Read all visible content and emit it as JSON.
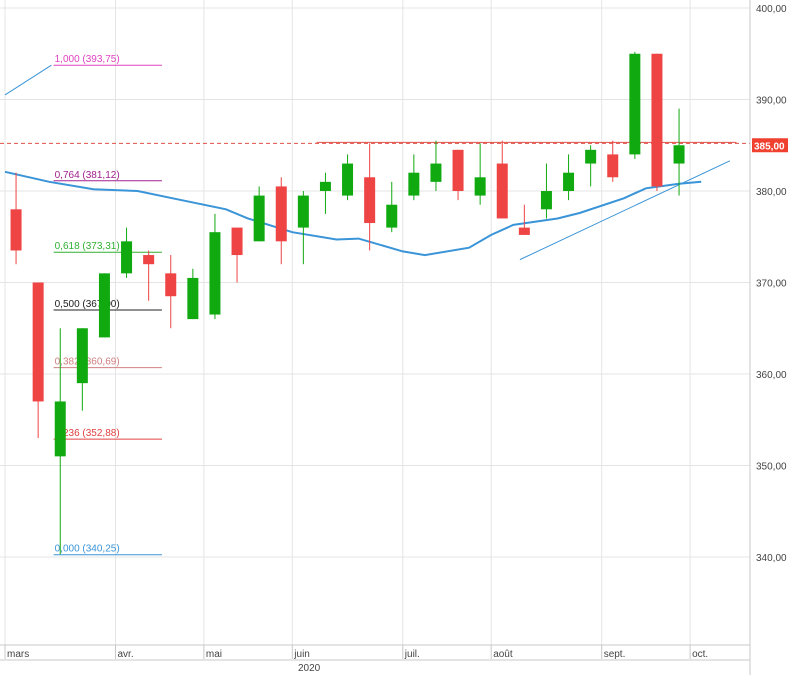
{
  "chart_data": {
    "type": "candlestick",
    "ylim": [
      333,
      400
    ],
    "yticks": [
      "400,00",
      "390,00",
      "380,00",
      "370,00",
      "360,00",
      "350,00",
      "340,00"
    ],
    "ytick_values": [
      400,
      390,
      380,
      370,
      360,
      350,
      340
    ],
    "xticks": [
      {
        "label": "mars",
        "index": -0.5
      },
      {
        "label": "avr.",
        "index": 4.5
      },
      {
        "label": "mai",
        "index": 8.5
      },
      {
        "label": "juin",
        "index": 12.5
      },
      {
        "label": "juil.",
        "index": 17.5
      },
      {
        "label": "août",
        "index": 21.5
      },
      {
        "label": "sept.",
        "index": 26.5
      },
      {
        "label": "oct.",
        "index": 30.5
      }
    ],
    "year_label": "2020",
    "current_price": {
      "label": "385,00",
      "value": 385,
      "color": "#f04030"
    },
    "candles": [
      {
        "o": 378,
        "h": 382,
        "l": 372,
        "c": 373.5
      },
      {
        "o": 370,
        "h": 370,
        "l": 353,
        "c": 357
      },
      {
        "o": 351,
        "h": 365,
        "l": 340.3,
        "c": 357
      },
      {
        "o": 359,
        "h": 365,
        "l": 356,
        "c": 365
      },
      {
        "o": 364,
        "h": 371,
        "l": 364,
        "c": 371
      },
      {
        "o": 371,
        "h": 376,
        "l": 370.5,
        "c": 374.5
      },
      {
        "o": 373,
        "h": 373.5,
        "l": 368,
        "c": 372
      },
      {
        "o": 371,
        "h": 373,
        "l": 365,
        "c": 368.5
      },
      {
        "o": 366,
        "h": 371.5,
        "l": 366,
        "c": 370.5
      },
      {
        "o": 366.5,
        "h": 377.5,
        "l": 366,
        "c": 375.5
      },
      {
        "o": 376,
        "h": 376,
        "l": 370,
        "c": 373
      },
      {
        "o": 374.5,
        "h": 380.5,
        "l": 374.5,
        "c": 379.5
      },
      {
        "o": 380.5,
        "h": 381.5,
        "l": 372,
        "c": 374.5
      },
      {
        "o": 376,
        "h": 380,
        "l": 372,
        "c": 379.5
      },
      {
        "o": 380,
        "h": 382,
        "l": 377.5,
        "c": 381
      },
      {
        "o": 379.5,
        "h": 384,
        "l": 379,
        "c": 383
      },
      {
        "o": 381.5,
        "h": 385.2,
        "l": 373.5,
        "c": 376.5
      },
      {
        "o": 376,
        "h": 381,
        "l": 375.5,
        "c": 378.5
      },
      {
        "o": 379.5,
        "h": 384,
        "l": 379,
        "c": 382
      },
      {
        "o": 381,
        "h": 385.5,
        "l": 380,
        "c": 383
      },
      {
        "o": 384.5,
        "h": 384.5,
        "l": 379,
        "c": 380
      },
      {
        "o": 379.5,
        "h": 385.2,
        "l": 378.5,
        "c": 381.5
      },
      {
        "o": 383,
        "h": 385.5,
        "l": 377,
        "c": 377
      },
      {
        "o": 376,
        "h": 378.5,
        "l": 375.5,
        "c": 375.2
      },
      {
        "o": 378,
        "h": 383,
        "l": 377,
        "c": 380
      },
      {
        "o": 380,
        "h": 384,
        "l": 379,
        "c": 382
      },
      {
        "o": 383,
        "h": 385,
        "l": 380.5,
        "c": 384.5
      },
      {
        "o": 384,
        "h": 385.5,
        "l": 381,
        "c": 381.5
      },
      {
        "o": 384,
        "h": 395.2,
        "l": 383.5,
        "c": 395
      },
      {
        "o": 395,
        "h": 395,
        "l": 380,
        "c": 380.5
      },
      {
        "o": 383,
        "h": 389,
        "l": 379.5,
        "c": 385
      }
    ],
    "moving_average": {
      "color": "#3a94d8",
      "points": [
        {
          "i": -0.5,
          "v": 382.1
        },
        {
          "i": 1.5,
          "v": 381
        },
        {
          "i": 3.5,
          "v": 380.2
        },
        {
          "i": 5.5,
          "v": 380
        },
        {
          "i": 7.5,
          "v": 379
        },
        {
          "i": 9.5,
          "v": 378
        },
        {
          "i": 10.5,
          "v": 377
        },
        {
          "i": 12.5,
          "v": 375.5
        },
        {
          "i": 14.5,
          "v": 374.7
        },
        {
          "i": 15.5,
          "v": 374.8
        },
        {
          "i": 17.5,
          "v": 373.4
        },
        {
          "i": 18.5,
          "v": 373
        },
        {
          "i": 20.5,
          "v": 373.8
        },
        {
          "i": 21.5,
          "v": 375.2
        },
        {
          "i": 22.5,
          "v": 376.3
        },
        {
          "i": 24.5,
          "v": 377
        },
        {
          "i": 25.5,
          "v": 377.6
        },
        {
          "i": 27.5,
          "v": 379.2
        },
        {
          "i": 28.5,
          "v": 380.3
        },
        {
          "i": 30,
          "v": 380.8
        },
        {
          "i": 31,
          "v": 381
        }
      ]
    },
    "trendlines": [
      {
        "color": "#3a94d8",
        "from": {
          "i": -0.5,
          "v": 390.5
        },
        "to": {
          "i": 1.6,
          "v": 393.75
        }
      },
      {
        "color": "#3a94d8",
        "from": {
          "i": 22.8,
          "v": 372.5
        },
        "to": {
          "i": 32.3,
          "v": 383.3
        }
      }
    ],
    "resistance_line": {
      "color": "#e05048",
      "value": 385.2,
      "from_i": 13.6,
      "to_i": 32.6
    },
    "fibonacci": [
      {
        "label": "1,000 (393,75)",
        "value": 393.75,
        "color": "#e040c0"
      },
      {
        "label": "0,764 (381,12)",
        "value": 381.12,
        "color": "#a02090"
      },
      {
        "label": "0,618 (373,31)",
        "value": 373.31,
        "color": "#30b030"
      },
      {
        "label": "0,500 (367,00)",
        "value": 367.0,
        "color": "#202020"
      },
      {
        "label": "0,382 (360,69)",
        "value": 360.69,
        "color": "#d08080"
      },
      {
        "label": "0,236 (352,88)",
        "value": 352.88,
        "color": "#e04040"
      },
      {
        "label": "0,000 (340,25)",
        "value": 340.25,
        "color": "#3a94d8"
      }
    ],
    "fib_range": {
      "from_i": 1.7,
      "to_i": 6.6
    },
    "colors": {
      "up": "#10aa10",
      "down": "#ee4444",
      "grid": "#e4e4e4",
      "axis": "#c8c8c8"
    }
  }
}
